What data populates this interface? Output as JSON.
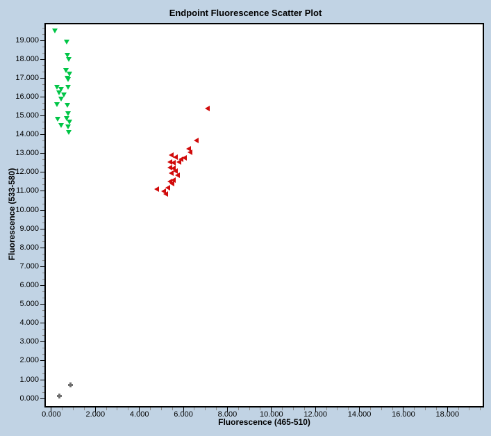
{
  "window": {
    "title": "Endpoint Fluorescence Scatter Plot"
  },
  "chart_data": {
    "type": "scatter",
    "title": "Endpoint Fluorescence Scatter Plot",
    "xlabel": "Fluorescence (465-510)",
    "ylabel": "Fluorescence (533-580)",
    "xlim": [
      -0.25,
      19.6
    ],
    "ylim": [
      -0.4,
      19.85
    ],
    "grid": false,
    "legend": "none",
    "x_major_ticks": [
      0,
      2,
      4,
      6,
      8,
      10,
      12,
      14,
      16,
      18
    ],
    "x_tick_labels": [
      "0.000",
      "2.000",
      "4.000",
      "6.000",
      "8.000",
      "10.000",
      "12.000",
      "14.000",
      "16.000",
      "18.000"
    ],
    "x_minor_step": 0.5,
    "y_major_ticks": [
      0,
      1,
      2,
      3,
      4,
      5,
      6,
      7,
      8,
      9,
      10,
      11,
      12,
      13,
      14,
      15,
      16,
      17,
      18,
      19
    ],
    "y_tick_labels": [
      "0.000",
      "1.000",
      "2.000",
      "3.000",
      "4.000",
      "5.000",
      "6.000",
      "7.000",
      "8.000",
      "9.000",
      "10.000",
      "11.000",
      "12.000",
      "13.000",
      "14.000",
      "15.000",
      "16.000",
      "17.000",
      "18.000",
      "19.000"
    ],
    "y_minor_step": 0.3333,
    "colors": {
      "background": "#C1D3E4",
      "plot_background": "#FFFFFF",
      "plot_border": "#000000",
      "green_series": "#00C546",
      "red_series": "#D10B0B",
      "gray_series": "#6F6F6F"
    },
    "series": [
      {
        "name": "green-triangle-down-cluster",
        "marker": "triangle-down",
        "color": "#00C546",
        "points": [
          [
            0.15,
            19.5
          ],
          [
            0.7,
            18.9
          ],
          [
            0.72,
            18.2
          ],
          [
            0.8,
            18.0
          ],
          [
            0.68,
            17.4
          ],
          [
            0.82,
            17.2
          ],
          [
            0.74,
            17.0
          ],
          [
            0.76,
            16.9
          ],
          [
            0.25,
            16.5
          ],
          [
            0.76,
            16.5
          ],
          [
            0.45,
            16.4
          ],
          [
            0.35,
            16.2
          ],
          [
            0.56,
            16.1
          ],
          [
            0.45,
            15.9
          ],
          [
            0.25,
            15.6
          ],
          [
            0.72,
            15.55
          ],
          [
            0.76,
            15.1
          ],
          [
            0.7,
            14.85
          ],
          [
            0.3,
            14.8
          ],
          [
            0.82,
            14.65
          ],
          [
            0.45,
            14.5
          ],
          [
            0.76,
            14.4
          ],
          [
            0.8,
            14.1
          ]
        ]
      },
      {
        "name": "red-triangle-left-cluster",
        "marker": "triangle-left",
        "color": "#D10B0B",
        "points": [
          [
            7.1,
            15.4
          ],
          [
            6.6,
            13.7
          ],
          [
            6.25,
            13.25
          ],
          [
            6.3,
            13.05
          ],
          [
            5.45,
            12.9
          ],
          [
            5.65,
            12.8
          ],
          [
            6.05,
            12.75
          ],
          [
            5.9,
            12.7
          ],
          [
            5.4,
            12.55
          ],
          [
            5.8,
            12.55
          ],
          [
            5.55,
            12.5
          ],
          [
            5.4,
            12.25
          ],
          [
            5.55,
            12.2
          ],
          [
            5.65,
            12.05
          ],
          [
            5.45,
            11.95
          ],
          [
            5.75,
            11.85
          ],
          [
            5.55,
            11.6
          ],
          [
            5.4,
            11.5
          ],
          [
            5.5,
            11.4
          ],
          [
            5.3,
            11.2
          ],
          [
            4.8,
            11.1
          ],
          [
            5.1,
            11.0
          ],
          [
            5.2,
            10.85
          ]
        ]
      },
      {
        "name": "gray-cross-cluster",
        "marker": "plus",
        "color": "#6F6F6F",
        "points": [
          [
            0.87,
            0.72
          ],
          [
            0.35,
            0.15
          ]
        ]
      }
    ]
  }
}
